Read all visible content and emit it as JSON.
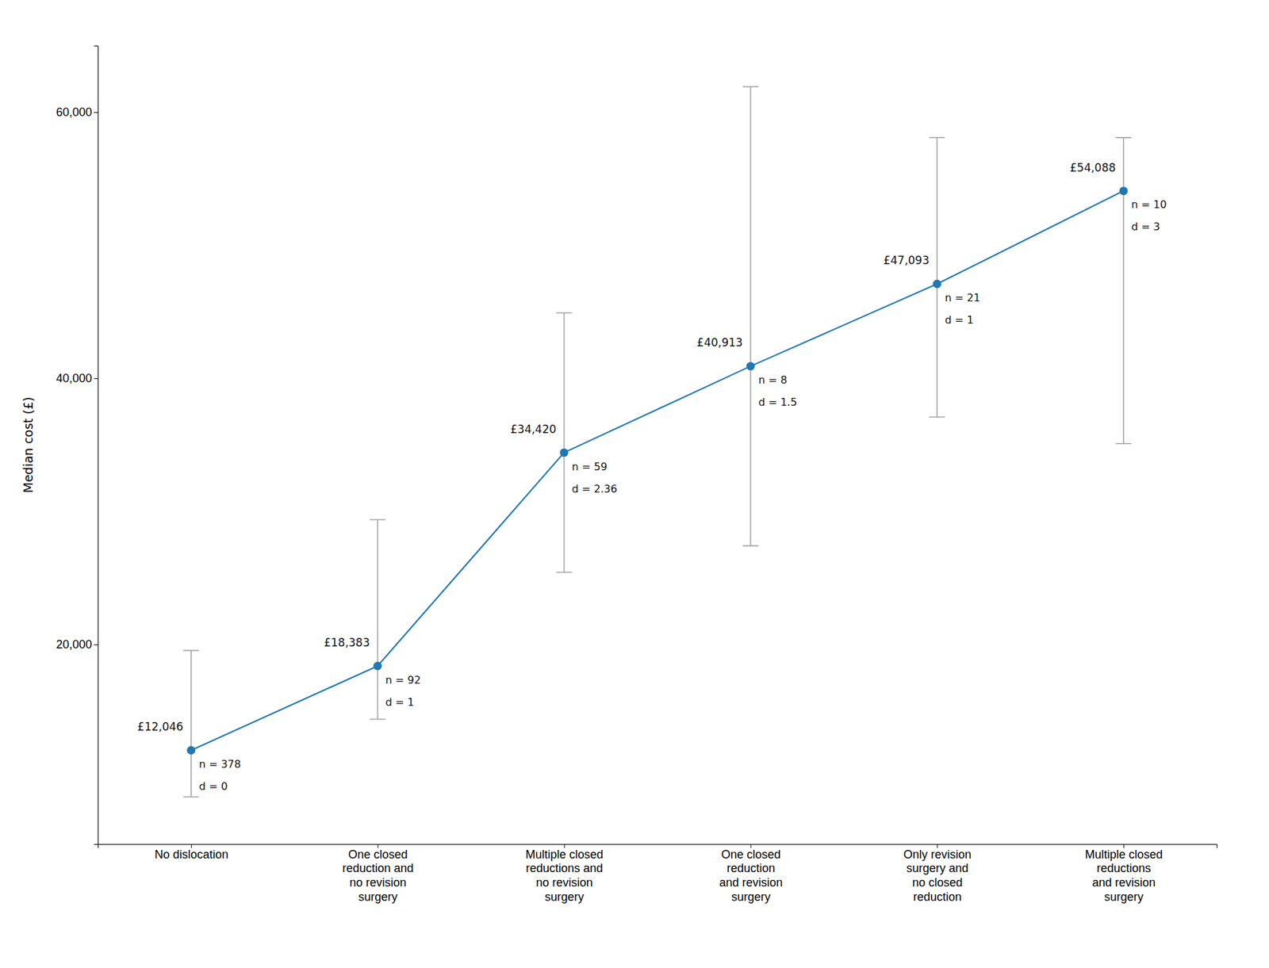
{
  "chart_data": {
    "type": "line",
    "categories": [
      "No dislocation",
      "One closed\nreduction and\nno revision\nsurgery",
      "Multiple closed\nreductions and\nno revision\nsurgery",
      "One closed\nreduction\nand revision\nsurgery",
      "Only revision\nsurgery and\nno closed\nreduction",
      "Multiple closed\nreductions\nand revision\nsurgery"
    ],
    "values": [
      12046,
      18383,
      34420,
      40913,
      47093,
      54088
    ],
    "value_labels": [
      "£12,046",
      "£18,383",
      "£34,420",
      "£40,913",
      "£47,093",
      "£54,088"
    ],
    "err_lower": [
      3500,
      4000,
      9000,
      13500,
      10000,
      19000
    ],
    "err_upper": [
      7500,
      11000,
      10500,
      21000,
      11000,
      4000
    ],
    "annotations": [
      [
        "n = 378",
        "d = 0"
      ],
      [
        "n = 92",
        "d = 1"
      ],
      [
        "n = 59",
        "d = 2.36"
      ],
      [
        "n = 8",
        "d = 1.5"
      ],
      [
        "n = 21",
        "d = 1"
      ],
      [
        "n = 10",
        "d = 3"
      ]
    ],
    "ylabel": "Median cost (£)",
    "ylim": [
      5000,
      65000
    ],
    "yticks": [
      {
        "value": 20000,
        "label": "20,000"
      },
      {
        "value": 40000,
        "label": "40,000"
      },
      {
        "value": 60000,
        "label": "60,000"
      }
    ],
    "data_labels": true,
    "marker": "circle",
    "grid": false
  }
}
